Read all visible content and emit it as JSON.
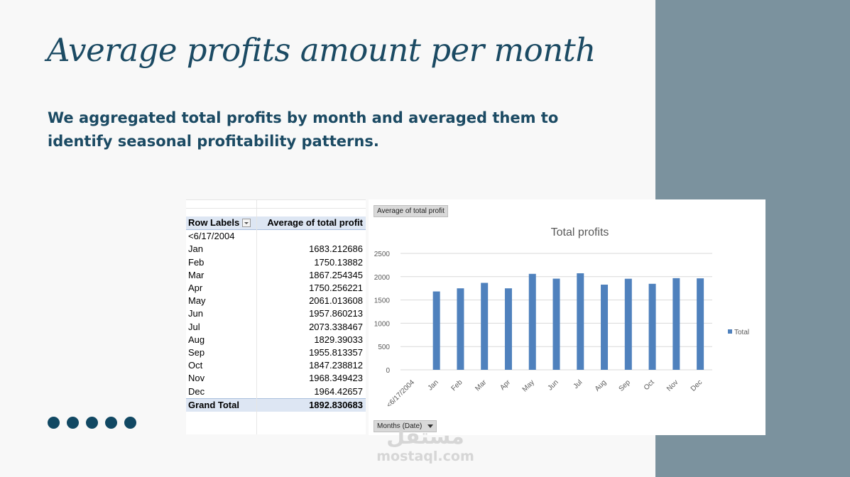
{
  "slide": {
    "title": "Average profits amount per month",
    "subtitle": "We aggregated total profits by month and averaged them to identify seasonal profitability patterns.",
    "dot_count": 5
  },
  "pivot": {
    "header_rows": "Row Labels",
    "header_values": "Average of total profit",
    "rows": [
      {
        "label": "<6/17/2004",
        "value": ""
      },
      {
        "label": "Jan",
        "value": "1683.212686"
      },
      {
        "label": "Feb",
        "value": "1750.13882"
      },
      {
        "label": "Mar",
        "value": "1867.254345"
      },
      {
        "label": "Apr",
        "value": "1750.256221"
      },
      {
        "label": "May",
        "value": "2061.013608"
      },
      {
        "label": "Jun",
        "value": "1957.860213"
      },
      {
        "label": "Jul",
        "value": "2073.338467"
      },
      {
        "label": "Aug",
        "value": "1829.39033"
      },
      {
        "label": "Sep",
        "value": "1955.813357"
      },
      {
        "label": "Oct",
        "value": "1847.238812"
      },
      {
        "label": "Nov",
        "value": "1968.349423"
      },
      {
        "label": "Dec",
        "value": "1964.42657"
      }
    ],
    "total_label": "Grand Total",
    "total_value": "1892.830683"
  },
  "chart_buttons": {
    "values_field": "Average of total profit",
    "axis_field": "Months (Date)"
  },
  "chart_data": {
    "type": "bar",
    "title": "Total profits",
    "categories": [
      "<6/17/2004",
      "Jan",
      "Feb",
      "Mar",
      "Apr",
      "May",
      "Jun",
      "Jul",
      "Aug",
      "Sep",
      "Oct",
      "Nov",
      "Dec"
    ],
    "series": [
      {
        "name": "Total",
        "values": [
          null,
          1683.212686,
          1750.13882,
          1867.254345,
          1750.256221,
          2061.013608,
          1957.860213,
          2073.338467,
          1829.39033,
          1955.813357,
          1847.238812,
          1968.349423,
          1964.42657
        ]
      }
    ],
    "ylim": [
      0,
      2500
    ],
    "yticks": [
      0,
      500,
      1000,
      1500,
      2000,
      2500
    ],
    "grid": true,
    "legend_position": "right",
    "bar_color": "#4f81bd"
  },
  "watermark": {
    "arabic": "مستقل",
    "latin": "mostaql.com"
  }
}
